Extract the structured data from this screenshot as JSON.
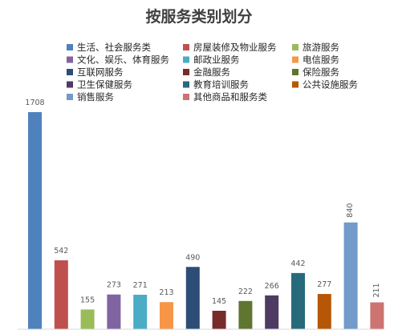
{
  "chart_data": {
    "type": "bar",
    "title": "按服务类别划分",
    "xlabel": "",
    "ylabel": "",
    "categories": [
      "生活、社会服务类",
      "房屋装修及物业服务",
      "旅游服务",
      "文化、娱乐、体育服务",
      "邮政业服务",
      "电信服务",
      "互联网服务",
      "金融服务",
      "保险服务",
      "卫生保健服务",
      "教育培训服务",
      "公共设施服务",
      "销售服务",
      "其他商品和服务类"
    ],
    "values": [
      1708,
      542,
      155,
      273,
      271,
      213,
      490,
      145,
      222,
      266,
      442,
      277,
      840,
      211
    ],
    "colors": [
      "#4F81BD",
      "#C0504D",
      "#9BBB59",
      "#8064A2",
      "#4BACC6",
      "#F79646",
      "#2C4D75",
      "#772C2A",
      "#5F7530",
      "#4D3B62",
      "#276A7C",
      "#B65708",
      "#729ACA",
      "#CD7371"
    ],
    "legend_position": "top",
    "grid": false,
    "ylim": [
      0,
      1750
    ]
  }
}
